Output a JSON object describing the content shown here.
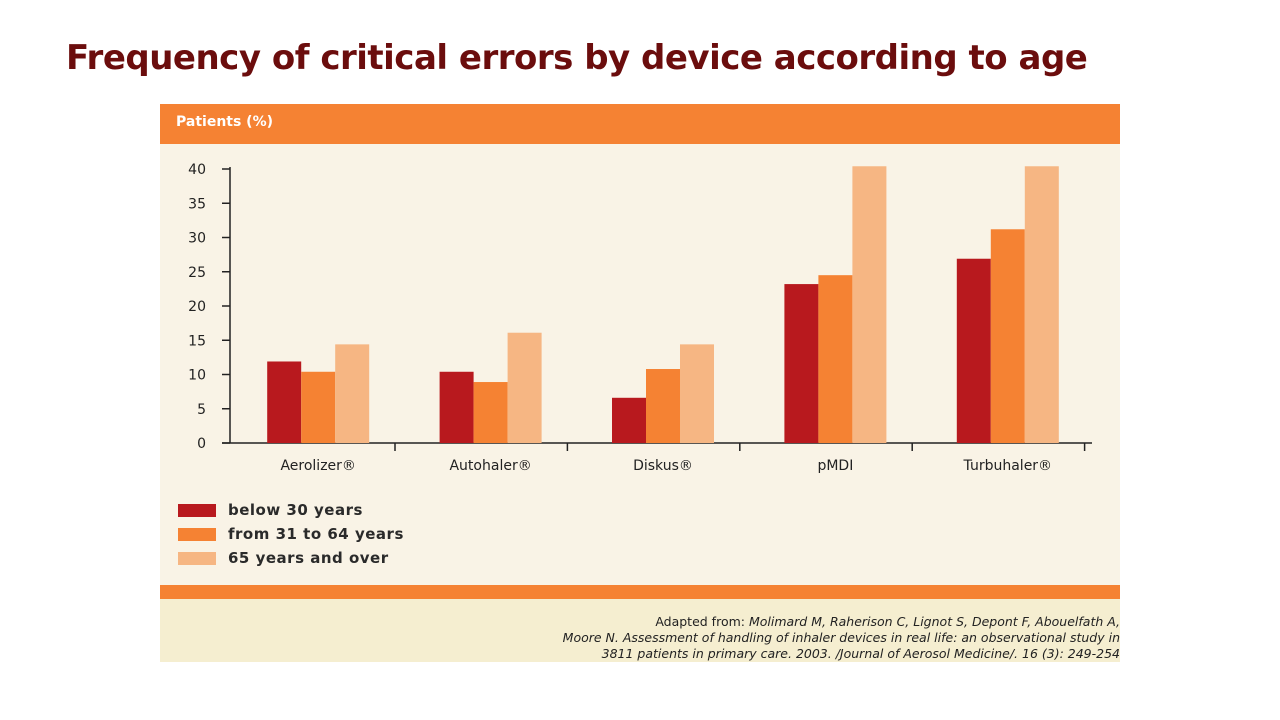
{
  "slide": {
    "title": "Frequency of critical errors by device according to age"
  },
  "chart_data": {
    "type": "bar",
    "ylabel": "Patients (%)",
    "ylim": [
      0,
      40
    ],
    "yticks": [
      0,
      5,
      10,
      15,
      20,
      25,
      30,
      35,
      40
    ],
    "categories": [
      "Aerolizer®",
      "Autohaler®",
      "Diskus®",
      "pMDI",
      "Turbuhaler®"
    ],
    "series": [
      {
        "name": "below 30 years",
        "color": "#b8191e",
        "values": [
          11.9,
          10.4,
          6.6,
          23.2,
          26.9
        ]
      },
      {
        "name": "from 31 to 64 years",
        "color": "#f58233",
        "values": [
          10.4,
          8.9,
          10.8,
          24.5,
          31.2
        ]
      },
      {
        "name": "65 years and over",
        "color": "#f6b683",
        "values": [
          14.4,
          16.1,
          14.4,
          40.4,
          40.4
        ]
      }
    ],
    "grid": false,
    "legend": "bottom-left"
  },
  "source": {
    "lead": "Adapted from: ",
    "line1": "Molimard M, Raherison C, Lignot S, Depont F, Abouelfath A,",
    "line2": "Moore N. Assessment of handling of inhaler devices in real life: an observational study in",
    "line3": "3811 patients in primary care. 2003. /Journal of Aerosol Medicine/. 16 (3): 249-254"
  }
}
